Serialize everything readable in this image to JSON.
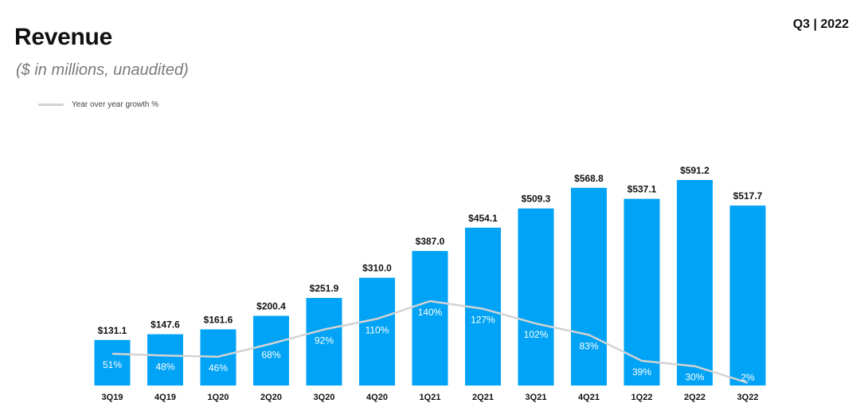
{
  "header": {
    "title": "Revenue",
    "subtitle": "($ in millions, unaudited)",
    "period": "Q3 | 2022"
  },
  "legend": {
    "label": "Year over year growth %"
  },
  "colors": {
    "bar": "#00a3f5",
    "growth_line": "#d3d3d3",
    "text": "#111111"
  },
  "chart_data": {
    "type": "bar",
    "title": "Revenue",
    "subtitle": "($ in millions, unaudited)",
    "categories": [
      "3Q19",
      "4Q19",
      "1Q20",
      "2Q20",
      "3Q20",
      "4Q20",
      "1Q21",
      "2Q21",
      "3Q21",
      "4Q21",
      "1Q22",
      "2Q22",
      "3Q22"
    ],
    "series": [
      {
        "values": [
          131.1,
          147.6,
          161.6,
          200.4,
          251.9,
          310.0,
          387.0,
          454.1,
          509.3,
          568.8,
          537.1,
          591.2,
          517.7
        ],
        "labels": [
          "$131.1",
          "$147.6",
          "$161.6",
          "$200.4",
          "$251.9",
          "$310.0",
          "$387.0",
          "$454.1",
          "$509.3",
          "$568.8",
          "$537.1",
          "$591.2",
          "$517.7"
        ]
      },
      {
        "name": "Year over year growth %",
        "type": "line",
        "values": [
          51,
          48,
          46,
          68,
          92,
          110,
          140,
          127,
          102,
          83,
          39,
          30,
          2
        ],
        "labels": [
          "51%",
          "48%",
          "46%",
          "68%",
          "92%",
          "110%",
          "140%",
          "127%",
          "102%",
          "83%",
          "39%",
          "30%",
          "2%"
        ]
      }
    ],
    "ylim": [
      0,
      600
    ],
    "growth_ylim": [
      0,
      140
    ],
    "legend_position": "top-left",
    "grid": false
  }
}
